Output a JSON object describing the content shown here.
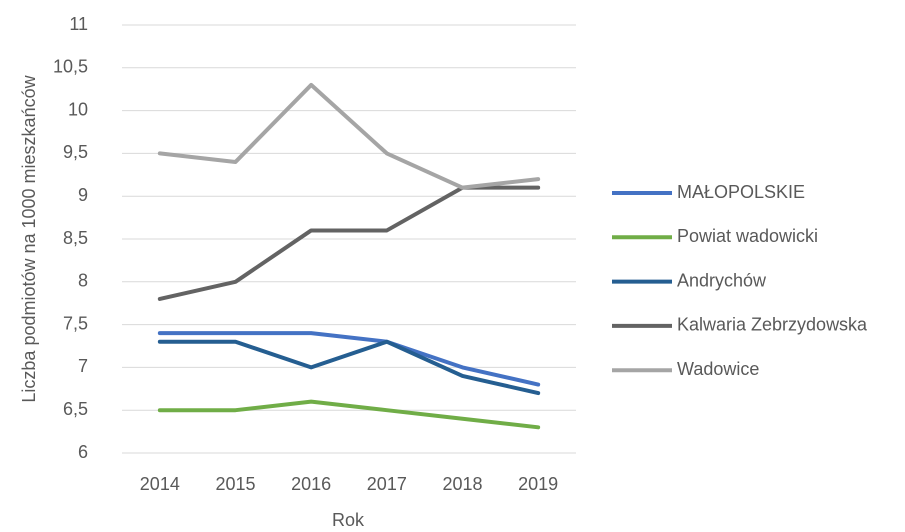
{
  "chart_data": {
    "type": "line",
    "x_label": "Rok",
    "y_label": "Liczba podmiotów na 1000 mieszkańców",
    "categories": [
      "2014",
      "2015",
      "2016",
      "2017",
      "2018",
      "2019"
    ],
    "series": [
      {
        "name": "MAŁOPOLSKIE",
        "color": "#4472c4",
        "values": [
          7.4,
          7.4,
          7.4,
          7.3,
          7.0,
          6.8
        ]
      },
      {
        "name": "Powiat wadowicki",
        "color": "#70ad47",
        "values": [
          6.5,
          6.5,
          6.6,
          6.5,
          6.4,
          6.3
        ]
      },
      {
        "name": "Andrychów",
        "color": "#255e91",
        "values": [
          7.3,
          7.3,
          7.0,
          7.3,
          6.9,
          6.7
        ]
      },
      {
        "name": "Kalwaria Zebrzydowska",
        "color": "#636363",
        "values": [
          7.8,
          8.0,
          8.6,
          8.6,
          9.1,
          9.1
        ]
      },
      {
        "name": "Wadowice",
        "color": "#a5a5a5",
        "values": [
          9.5,
          9.4,
          10.3,
          9.5,
          9.1,
          9.2
        ]
      }
    ],
    "ylim": [
      6,
      11
    ],
    "yticks": [
      6,
      {
        "value": 6.5,
        "label": "6,5"
      },
      7,
      {
        "value": 7.5,
        "label": "7,5"
      },
      8,
      {
        "value": 8.5,
        "label": "8,5"
      },
      9,
      {
        "value": 9.5,
        "label": "9,5"
      },
      10,
      {
        "value": 10.5,
        "label": "10,5"
      },
      11
    ],
    "grid": true,
    "legend": "right"
  }
}
